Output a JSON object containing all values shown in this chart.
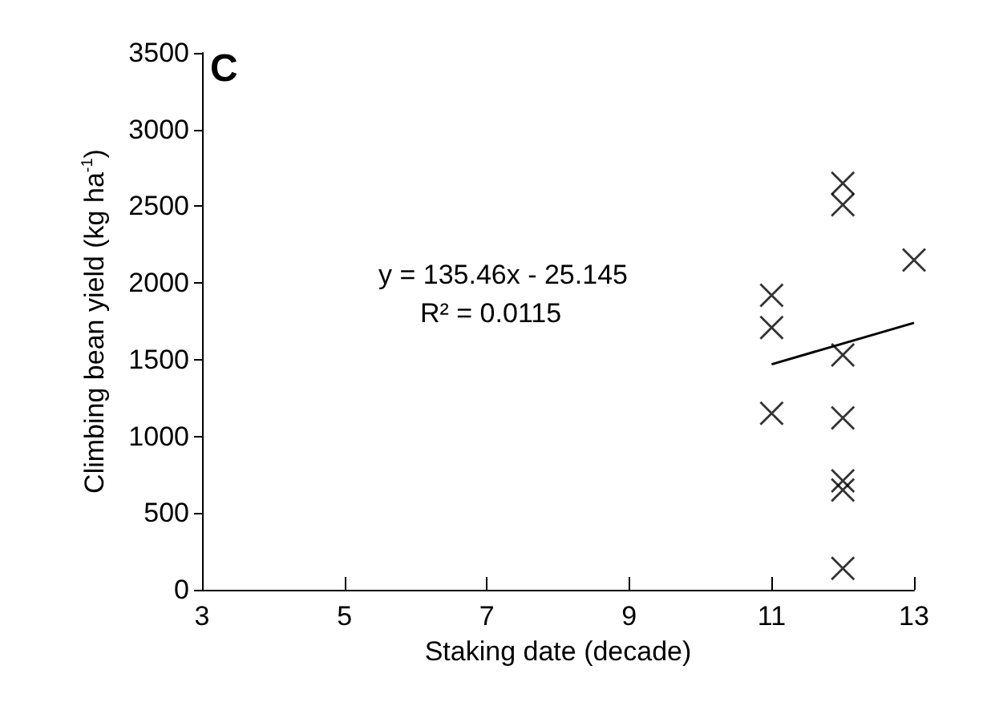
{
  "chart_data": {
    "type": "scatter",
    "title": "C",
    "xlabel": "Staking date (decade)",
    "ylabel": "Climbing bean yield (kg ha$^{-1}$)",
    "annotations": [
      "y = 135.46x - 25.145",
      "R² = 0.0115"
    ],
    "series": [
      {
        "color": "#000000",
        "marker": "cross",
        "x": [
          11,
          11,
          11,
          12,
          12,
          12,
          12,
          12,
          12,
          12,
          13
        ],
        "values": [
          1920,
          1710,
          1150,
          2650,
          2510,
          1530,
          1120,
          710,
          650,
          140,
          2150
        ]
      },
      {
        "type": "line",
        "color": "#000000",
        "x": [
          11,
          13
        ],
        "values": [
          1470,
          1740
        ]
      }
    ],
    "xlim": [
      3,
      13
    ],
    "xticks": [
      3,
      5,
      7,
      9,
      11,
      13
    ],
    "ylim": [
      0,
      3500
    ],
    "yticks": [
      0,
      500,
      1000,
      1500,
      2000,
      2500,
      3000,
      3500
    ],
    "grid": false
  }
}
